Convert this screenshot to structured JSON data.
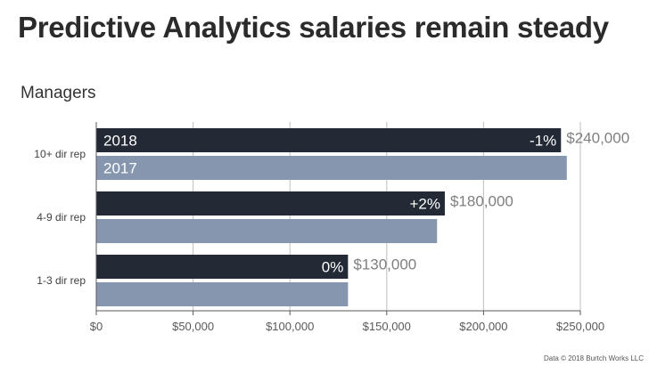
{
  "title": "Predictive Analytics salaries remain steady",
  "subtitle": "Managers",
  "footer": "Data © 2018 Burtch Works LLC",
  "colors": {
    "series_2018": "#232a36",
    "series_2017": "#8596ae",
    "grid": "#bfbfbf",
    "axis": "#595959"
  },
  "chart_data": {
    "type": "bar",
    "orientation": "horizontal",
    "title": "Predictive Analytics salaries remain steady",
    "subtitle": "Managers",
    "categories": [
      "10+ dir rep",
      "4-9 dir rep",
      "1-3 dir rep"
    ],
    "series": [
      {
        "name": "2018",
        "values": [
          240000,
          180000,
          130000
        ]
      },
      {
        "name": "2017",
        "values": [
          243000,
          176000,
          130000
        ]
      }
    ],
    "value_labels": [
      "$240,000",
      "$180,000",
      "$130,000"
    ],
    "change_labels": [
      "-1%",
      "+2%",
      "0%"
    ],
    "xlim": [
      0,
      250000
    ],
    "xticks": [
      0,
      50000,
      100000,
      150000,
      200000,
      250000
    ],
    "xtick_labels": [
      "$0",
      "$50,000",
      "$100,000",
      "$150,000",
      "$200,000",
      "$250,000"
    ],
    "grid": true,
    "legend": "labels inside first category bars"
  }
}
